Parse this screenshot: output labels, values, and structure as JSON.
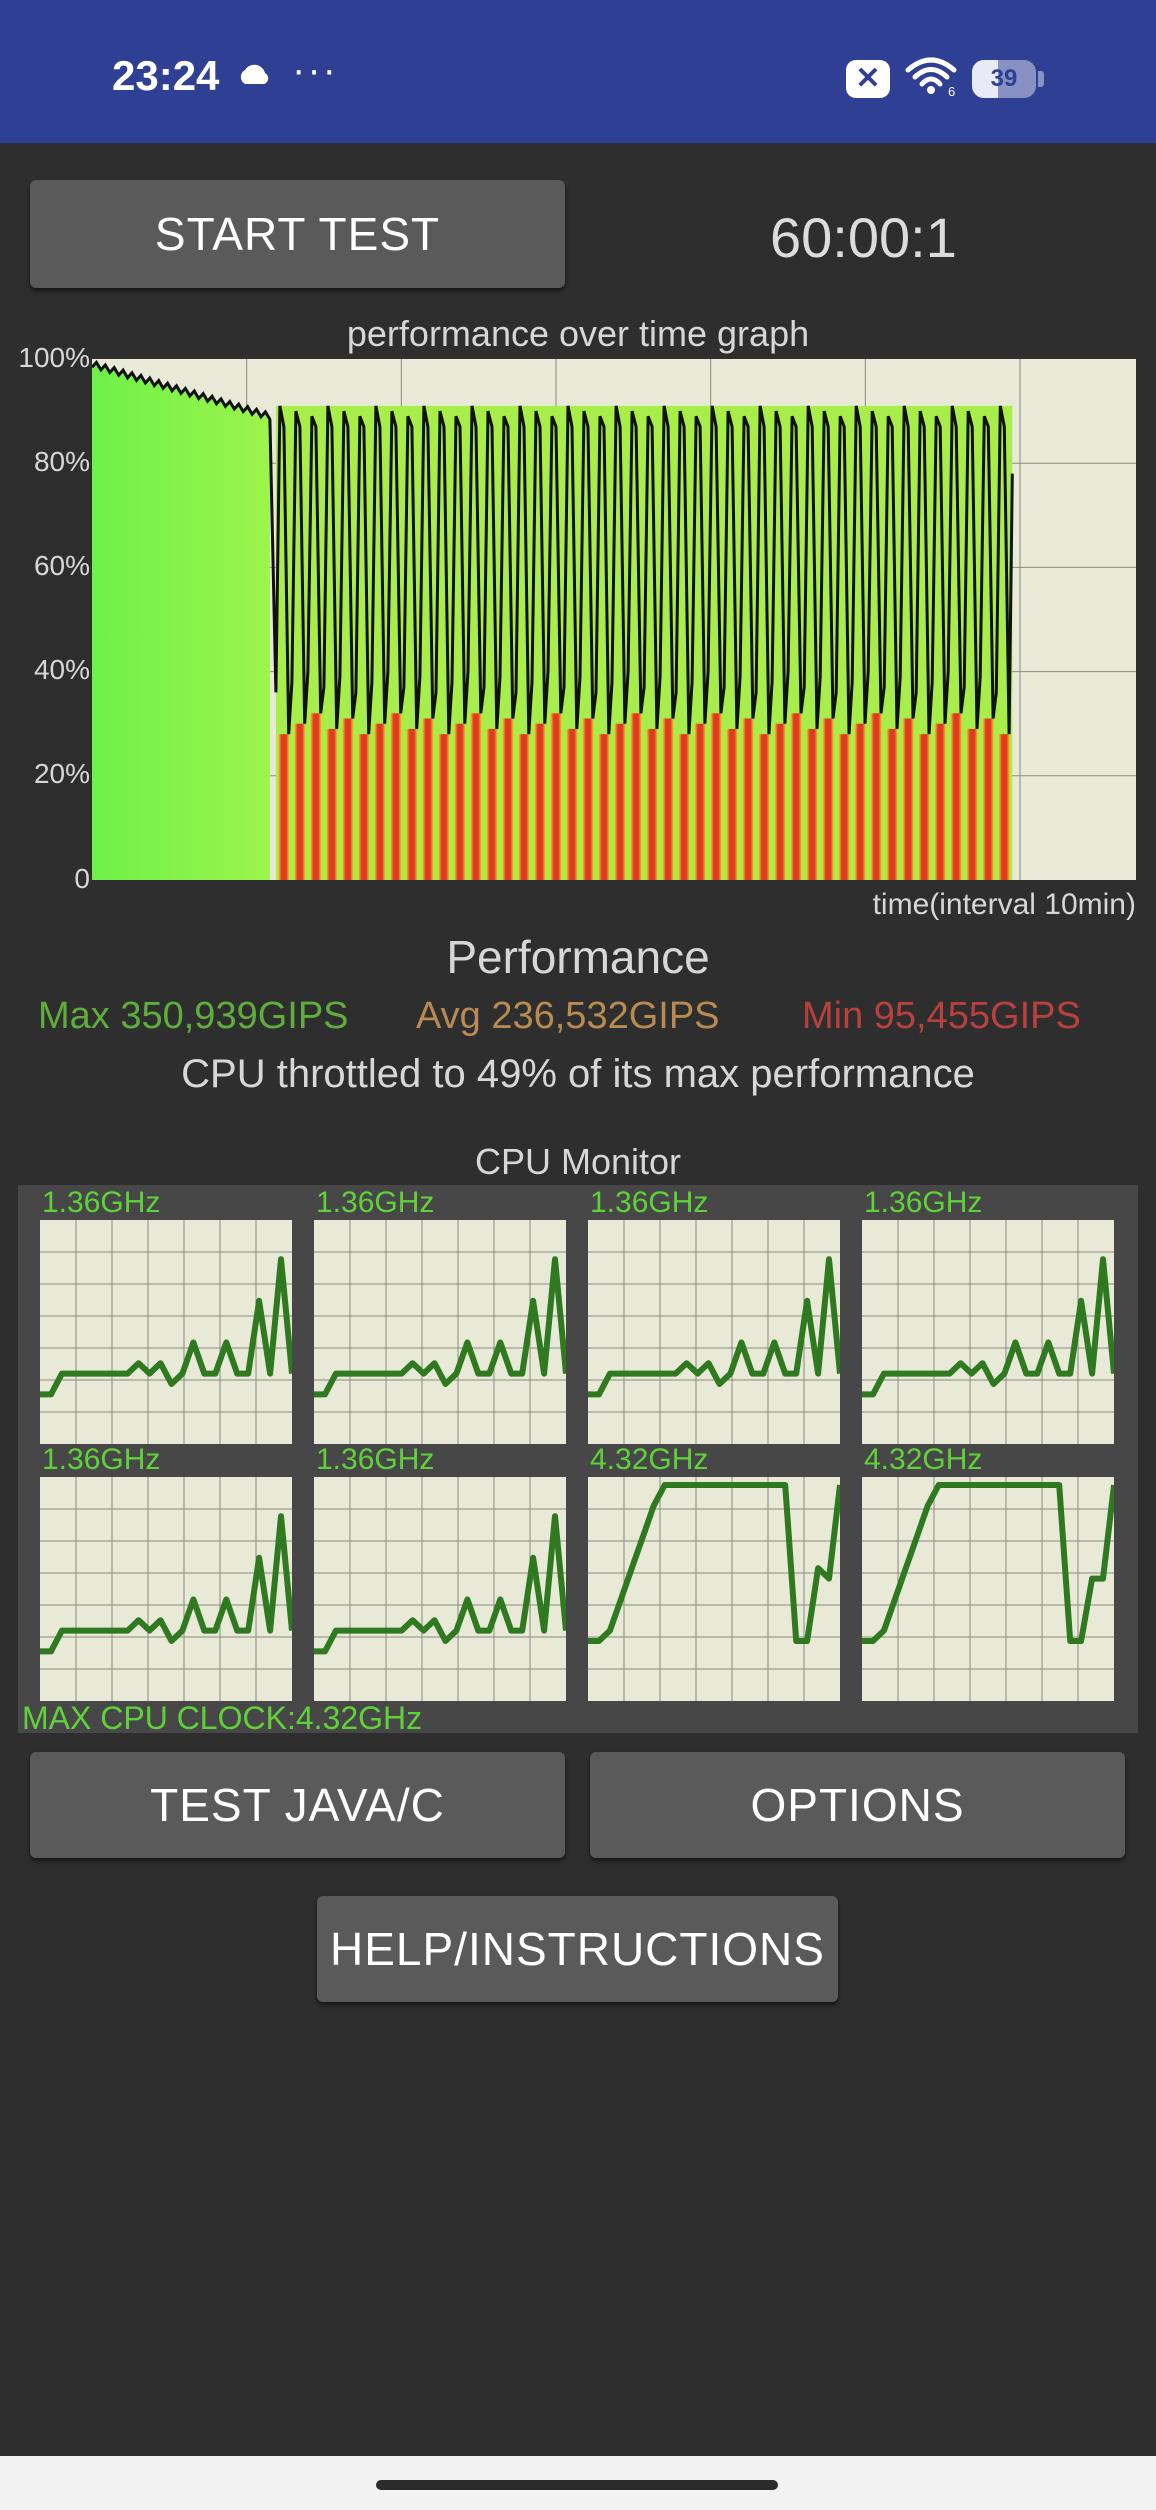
{
  "status_bar": {
    "time": "23:24",
    "dots": "···",
    "battery": "39",
    "colors": {
      "background": "#2f3f93"
    }
  },
  "controls": {
    "start_test": "START TEST",
    "timer": "60:00:1",
    "test_java_c": "TEST JAVA/C",
    "options": "OPTIONS",
    "help": "HELP/INSTRUCTIONS"
  },
  "graph": {
    "title": "performance over time graph",
    "y_ticks": [
      "100%",
      "80%",
      "60%",
      "40%",
      "20%",
      "0"
    ],
    "x_label": "time(interval 10min)",
    "chart_data": {
      "type": "area",
      "ylim": [
        0,
        100
      ],
      "x_grid_intervals": 7,
      "initial_phase": {
        "start": 99,
        "end": 89
      },
      "throttled_phase": {
        "peak": 91,
        "trough": 29,
        "cycles": 46
      },
      "grid": true
    }
  },
  "performance": {
    "title": "Performance",
    "max": "Max 350,939GIPS",
    "avg": "Avg 236,532GIPS",
    "min": "Min 95,455GIPS",
    "throttle_msg": "CPU throttled to 49% of its max performance"
  },
  "cpu_monitor": {
    "title": "CPU Monitor",
    "max_clock": "MAX CPU CLOCK:4.32GHz",
    "cores": [
      {
        "freq": "1.36GHz",
        "trace": [
          0.2,
          0.2,
          0.3,
          0.3,
          0.3,
          0.3,
          0.3,
          0.3,
          0.3,
          0.35,
          0.3,
          0.35,
          0.25,
          0.3,
          0.45,
          0.3,
          0.3,
          0.45,
          0.3,
          0.3,
          0.65,
          0.3,
          0.85,
          0.3
        ]
      },
      {
        "freq": "1.36GHz",
        "trace": [
          0.2,
          0.2,
          0.3,
          0.3,
          0.3,
          0.3,
          0.3,
          0.3,
          0.3,
          0.35,
          0.3,
          0.35,
          0.25,
          0.3,
          0.45,
          0.3,
          0.3,
          0.45,
          0.3,
          0.3,
          0.65,
          0.3,
          0.85,
          0.3
        ]
      },
      {
        "freq": "1.36GHz",
        "trace": [
          0.2,
          0.2,
          0.3,
          0.3,
          0.3,
          0.3,
          0.3,
          0.3,
          0.3,
          0.35,
          0.3,
          0.35,
          0.25,
          0.3,
          0.45,
          0.3,
          0.3,
          0.45,
          0.3,
          0.3,
          0.65,
          0.3,
          0.85,
          0.3
        ]
      },
      {
        "freq": "1.36GHz",
        "trace": [
          0.2,
          0.2,
          0.3,
          0.3,
          0.3,
          0.3,
          0.3,
          0.3,
          0.3,
          0.35,
          0.3,
          0.35,
          0.25,
          0.3,
          0.45,
          0.3,
          0.3,
          0.45,
          0.3,
          0.3,
          0.65,
          0.3,
          0.85,
          0.3
        ]
      },
      {
        "freq": "1.36GHz",
        "trace": [
          0.2,
          0.2,
          0.3,
          0.3,
          0.3,
          0.3,
          0.3,
          0.3,
          0.3,
          0.35,
          0.3,
          0.35,
          0.25,
          0.3,
          0.45,
          0.3,
          0.3,
          0.45,
          0.3,
          0.3,
          0.65,
          0.3,
          0.85,
          0.3
        ]
      },
      {
        "freq": "1.36GHz",
        "trace": [
          0.2,
          0.2,
          0.3,
          0.3,
          0.3,
          0.3,
          0.3,
          0.3,
          0.3,
          0.35,
          0.3,
          0.35,
          0.25,
          0.3,
          0.45,
          0.3,
          0.3,
          0.45,
          0.3,
          0.3,
          0.65,
          0.3,
          0.85,
          0.3
        ]
      },
      {
        "freq": "4.32GHz",
        "trace": [
          0.25,
          0.25,
          0.3,
          0.45,
          0.6,
          0.75,
          0.9,
          1,
          1,
          1,
          1,
          1,
          1,
          1,
          1,
          1,
          1,
          1,
          1,
          0.25,
          0.25,
          0.6,
          0.55,
          1
        ]
      },
      {
        "freq": "4.32GHz",
        "trace": [
          0.25,
          0.25,
          0.3,
          0.45,
          0.6,
          0.75,
          0.9,
          1,
          1,
          1,
          1,
          1,
          1,
          1,
          1,
          1,
          1,
          1,
          1,
          0.25,
          0.25,
          0.55,
          0.55,
          1
        ]
      }
    ]
  }
}
